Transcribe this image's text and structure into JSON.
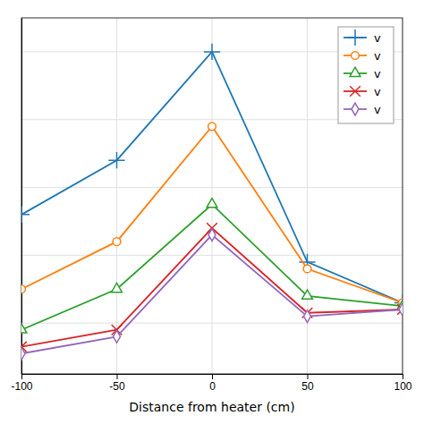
{
  "chart_data": {
    "type": "line",
    "xlabel": "Distance from heater (cm)",
    "x": [
      -100,
      -50,
      0,
      50,
      100
    ],
    "xlim": [
      -100,
      100
    ],
    "xticks": [
      -100,
      -50,
      0,
      50,
      100
    ],
    "ylim": [
      0.05,
      1.1
    ],
    "yticks": [
      0.2,
      0.4,
      0.6,
      0.8,
      1.0
    ],
    "grid": true,
    "legend": "upper right",
    "tick_labels": "x",
    "series": [
      {
        "name": "v",
        "marker": "plus",
        "values": [
          0.52,
          0.68,
          1.0,
          0.38,
          0.26
        ]
      },
      {
        "name": "v",
        "marker": "circle",
        "values": [
          0.3,
          0.44,
          0.78,
          0.36,
          0.26
        ]
      },
      {
        "name": "v",
        "marker": "triangle",
        "values": [
          0.18,
          0.3,
          0.55,
          0.28,
          0.25
        ]
      },
      {
        "name": "v",
        "marker": "xmark",
        "values": [
          0.13,
          0.18,
          0.48,
          0.23,
          0.24
        ]
      },
      {
        "name": "v",
        "marker": "diamond",
        "values": [
          0.11,
          0.16,
          0.46,
          0.22,
          0.24
        ]
      }
    ]
  }
}
